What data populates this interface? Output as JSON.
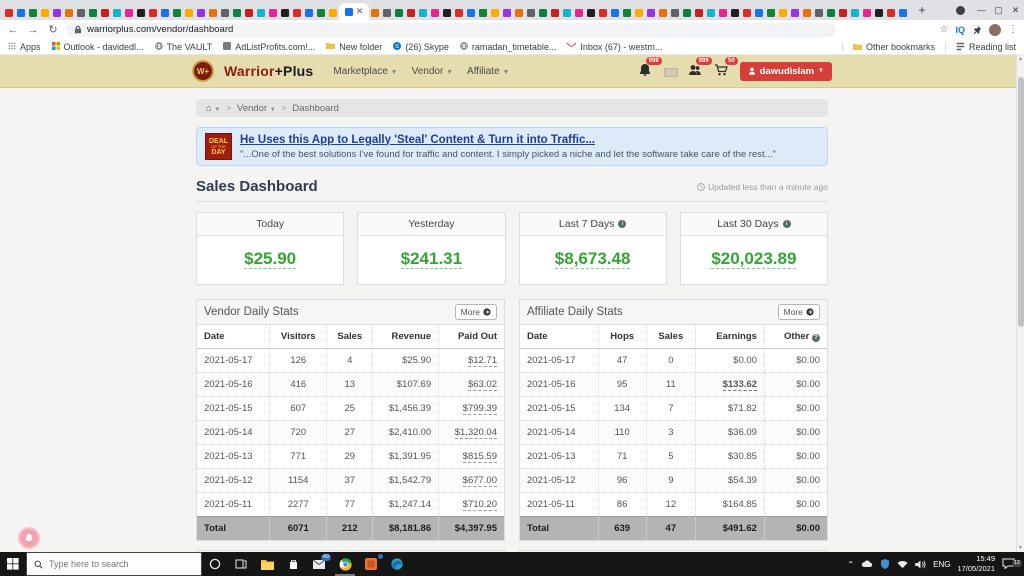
{
  "browser": {
    "url": "warriorplus.com/vendor/dashboard",
    "iq_badge": "IQ",
    "other_bookmarks": "Other bookmarks",
    "reading_list": "Reading list",
    "bookmarks": [
      {
        "label": "Apps",
        "icon": "apps-grid-icon",
        "color": "#9aa0a6"
      },
      {
        "label": "Outlook - davidedl...",
        "icon": "ms-grid-icon",
        "color": "#e8710a"
      },
      {
        "label": "The VAULT",
        "icon": "globe-icon",
        "color": "#5f6368"
      },
      {
        "label": "AdListProfits.com!...",
        "icon": "site-icon",
        "color": "#7b7b7b"
      },
      {
        "label": "New folder",
        "icon": "folder-icon",
        "color": "#f9ab00"
      },
      {
        "label": "(26) Skype",
        "icon": "skype-icon",
        "color": "#0078d4"
      },
      {
        "label": "ramadan_timetable...",
        "icon": "globe-icon",
        "color": "#5f6368"
      },
      {
        "label": "Inbox (67) - westm...",
        "icon": "gmail-icon",
        "color": "#d93025"
      }
    ],
    "tabs": {
      "before_active": 28,
      "after_active": 45,
      "palette": [
        "#d93025",
        "#1a73e8",
        "#188038",
        "#f9ab00",
        "#9334e6",
        "#e8710a",
        "#5f6368",
        "#0b8043",
        "#c5221f",
        "#12b5cb",
        "#e52592",
        "#202124"
      ]
    }
  },
  "site": {
    "logo_monogram": "W+",
    "brand_red": "Warrior",
    "brand_black": "+Plus",
    "nav": [
      {
        "label": "Marketplace"
      },
      {
        "label": "Vendor"
      },
      {
        "label": "Affiliate"
      }
    ],
    "badge_notifications": "999",
    "badge_users": "999",
    "badge_cart": "50",
    "account_label": "dawudislam"
  },
  "breadcrumb": {
    "vendor": "Vendor",
    "dashboard": "Dashboard"
  },
  "deal": {
    "badge_line1": "DEAL",
    "badge_line2": "OF THE",
    "badge_line3": "DAY",
    "title": "He Uses this App to Legally 'Steal' Content & Turn it into Traffic...",
    "quote": "\"...One of the best solutions I've found for traffic and content. I simply picked a niche and let the software take care of the rest...\""
  },
  "dashboard": {
    "title": "Sales Dashboard",
    "updated": "Updated less than a minute ago",
    "value_color": "#33a532",
    "cards": [
      {
        "label": "Today",
        "value": "$25.90",
        "info": false
      },
      {
        "label": "Yesterday",
        "value": "$241.31",
        "info": false
      },
      {
        "label": "Last 7 Days",
        "value": "$8,673.48",
        "info": true
      },
      {
        "label": "Last 30 Days",
        "value": "$20,023.89",
        "info": true
      }
    ]
  },
  "vendor_stats": {
    "title": "Vendor Daily Stats",
    "more": "More",
    "columns": [
      "Date",
      "Visitors",
      "Sales",
      "Revenue",
      "Paid Out"
    ],
    "align": [
      "l",
      "c",
      "c",
      "r",
      "r"
    ],
    "link_col": 4,
    "rows": [
      [
        "2021-05-17",
        "126",
        "4",
        "$25.90",
        "$12.71"
      ],
      [
        "2021-05-16",
        "416",
        "13",
        "$107.69",
        "$63.02"
      ],
      [
        "2021-05-15",
        "607",
        "25",
        "$1,456.39",
        "$799.39"
      ],
      [
        "2021-05-14",
        "720",
        "27",
        "$2,410.00",
        "$1,320.04"
      ],
      [
        "2021-05-13",
        "771",
        "29",
        "$1,391.95",
        "$815.59"
      ],
      [
        "2021-05-12",
        "1154",
        "37",
        "$1,542.79",
        "$677.00"
      ],
      [
        "2021-05-11",
        "2277",
        "77",
        "$1,247.14",
        "$710.20"
      ]
    ],
    "total": [
      "Total",
      "6071",
      "212",
      "$8,181.86",
      "$4,397.95"
    ]
  },
  "affiliate_stats": {
    "title": "Affiliate Daily Stats",
    "more": "More",
    "columns": [
      "Date",
      "Hops",
      "Sales",
      "Earnings",
      "Other"
    ],
    "align": [
      "l",
      "c",
      "c",
      "r",
      "r"
    ],
    "header_info_col": 4,
    "emph_row": 1,
    "emph_col": 3,
    "rows": [
      [
        "2021-05-17",
        "47",
        "0",
        "$0.00",
        "$0.00"
      ],
      [
        "2021-05-16",
        "95",
        "11",
        "$133.62",
        "$0.00"
      ],
      [
        "2021-05-15",
        "134",
        "7",
        "$71.82",
        "$0.00"
      ],
      [
        "2021-05-14",
        "110",
        "3",
        "$36.09",
        "$0.00"
      ],
      [
        "2021-05-13",
        "71",
        "5",
        "$30.85",
        "$0.00"
      ],
      [
        "2021-05-12",
        "96",
        "9",
        "$54.39",
        "$0.00"
      ],
      [
        "2021-05-11",
        "86",
        "12",
        "$164.85",
        "$0.00"
      ]
    ],
    "total": [
      "Total",
      "639",
      "47",
      "$491.62",
      "$0.00"
    ]
  },
  "taskbar": {
    "search_placeholder": "Type here to search",
    "mail_badge": "49",
    "lang": "ENG",
    "time": "15:49",
    "date": "17/05/2021",
    "tray_badge": "12"
  }
}
